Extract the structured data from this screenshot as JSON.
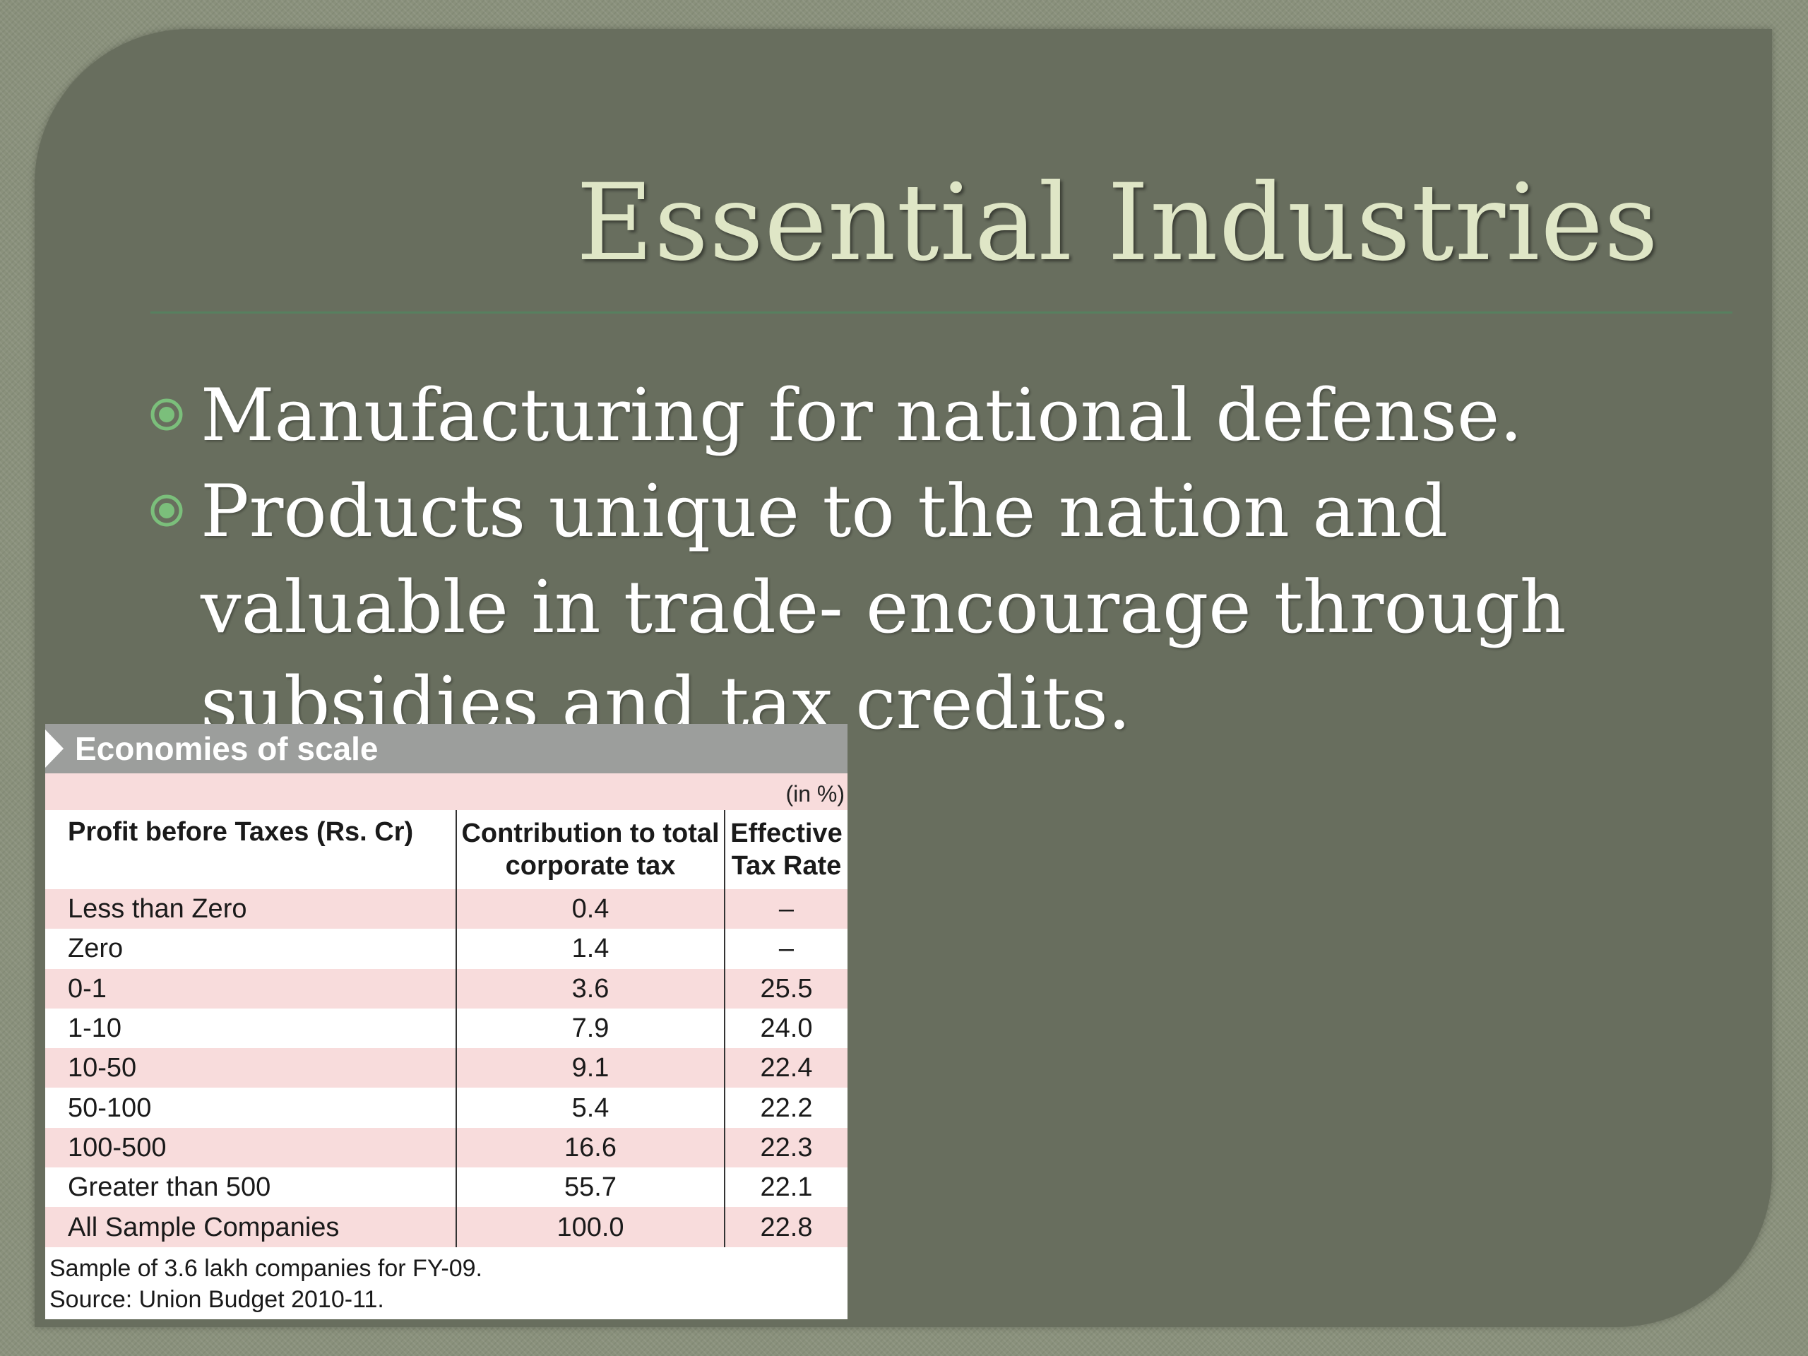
{
  "slide": {
    "title": "Essential Industries",
    "bullets": [
      {
        "icon": "circle-bullet-icon",
        "text": "Manufacturing for national defense."
      },
      {
        "icon": "circle-bullet-icon",
        "text": "Products unique to the nation and valuable in trade- encourage through subsidies and tax credits."
      }
    ],
    "colors": {
      "background": "#8a917c",
      "slide": "#686e5e",
      "title": "#dfe6c6",
      "rule": "#57805f",
      "bullet_icon": "#7bbf7b"
    }
  },
  "table": {
    "title": "Economies of scale",
    "unit": "(in %)",
    "headers": {
      "col1": "Profit before Taxes (Rs. Cr)",
      "col2": "Contribution to total corporate tax",
      "col3": "Effective Tax Rate"
    },
    "rows": [
      {
        "range": "Less than Zero",
        "contribution": "0.4",
        "rate": "–"
      },
      {
        "range": "Zero",
        "contribution": "1.4",
        "rate": "–"
      },
      {
        "range": "0-1",
        "contribution": "3.6",
        "rate": "25.5"
      },
      {
        "range": "1-10",
        "contribution": "7.9",
        "rate": "24.0"
      },
      {
        "range": "10-50",
        "contribution": "9.1",
        "rate": "22.4"
      },
      {
        "range": "50-100",
        "contribution": "5.4",
        "rate": "22.2"
      },
      {
        "range": "100-500",
        "contribution": "16.6",
        "rate": "22.3"
      },
      {
        "range": "Greater than 500",
        "contribution": "55.7",
        "rate": "22.1"
      },
      {
        "range": "All Sample Companies",
        "contribution": "100.0",
        "rate": "22.8"
      }
    ],
    "footnotes": [
      "Sample of 3.6 lakh companies for FY-09.",
      "Source: Union Budget 2010-11."
    ],
    "colors": {
      "header_bar": "#9c9e9c",
      "stripe": "#f8dcdc"
    }
  }
}
